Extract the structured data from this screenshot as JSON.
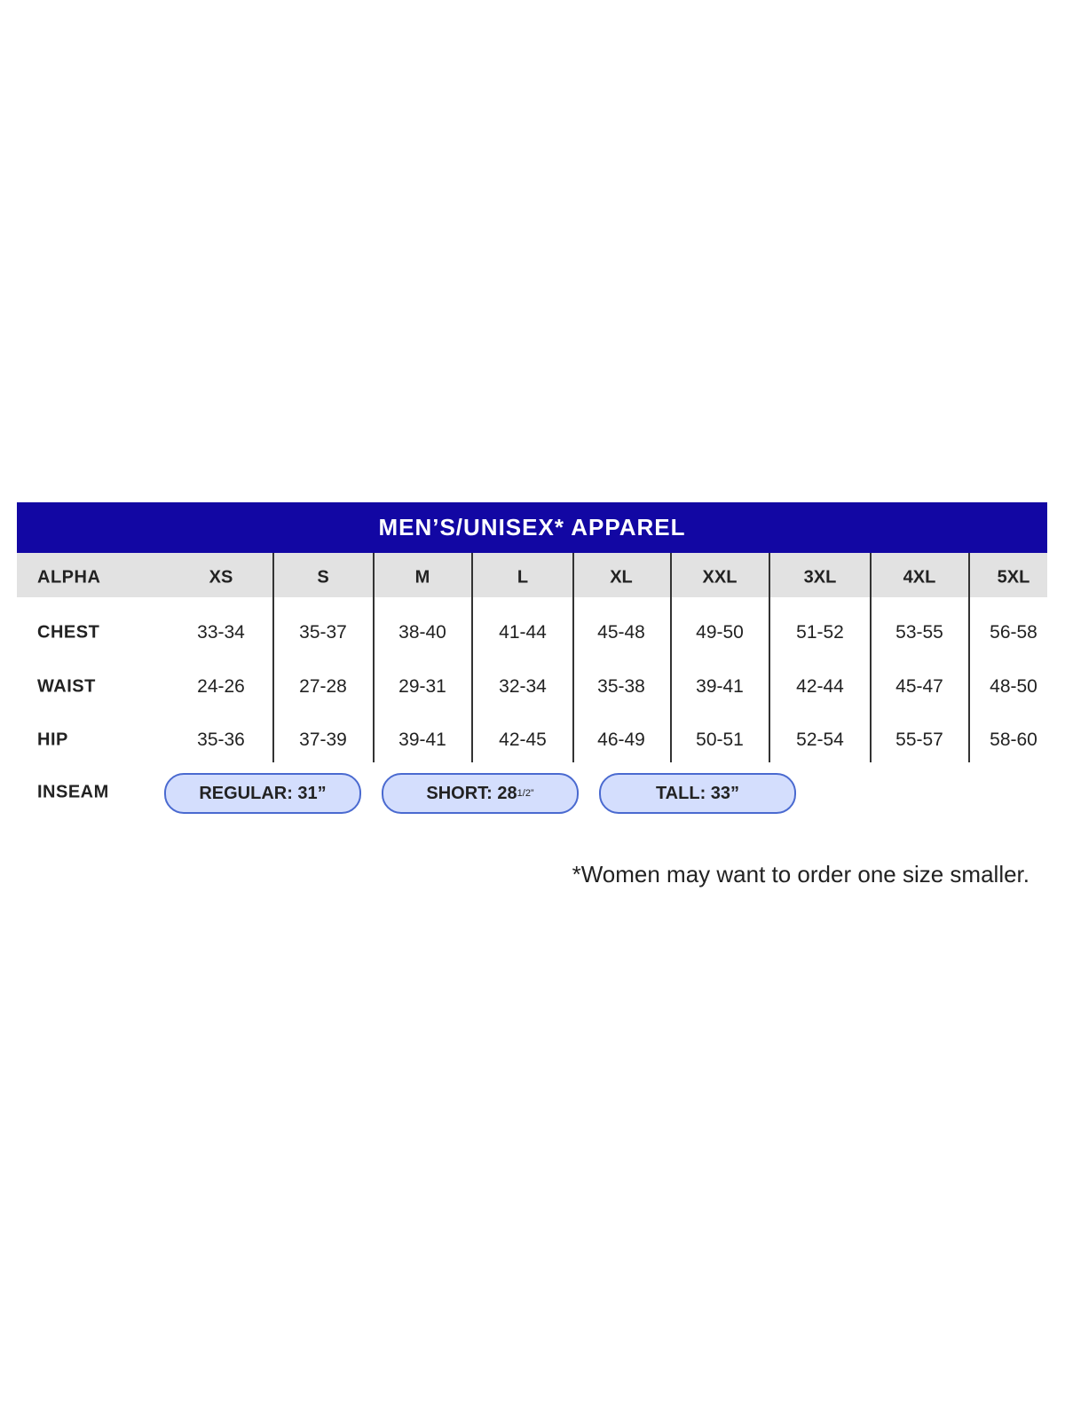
{
  "title": "MEN’S/UNISEX* APPAREL",
  "colors": {
    "header_bg": "#1207a3",
    "row_header_bg": "#e2e2e2",
    "pill_bg": "#d4defd",
    "pill_border": "#4a6ad0"
  },
  "header": {
    "label": "ALPHA",
    "sizes": [
      "XS",
      "S",
      "M",
      "L",
      "XL",
      "XXL",
      "3XL",
      "4XL",
      "5XL"
    ]
  },
  "rows": [
    {
      "label": "CHEST",
      "values": [
        "33-34",
        "35-37",
        "38-40",
        "41-44",
        "45-48",
        "49-50",
        "51-52",
        "53-55",
        "56-58"
      ]
    },
    {
      "label": "WAIST",
      "values": [
        "24-26",
        "27-28",
        "29-31",
        "32-34",
        "35-38",
        "39-41",
        "42-44",
        "45-47",
        "48-50"
      ]
    },
    {
      "label": "HIP",
      "values": [
        "35-36",
        "37-39",
        "39-41",
        "42-45",
        "46-49",
        "50-51",
        "52-54",
        "55-57",
        "58-60"
      ]
    }
  ],
  "inseam": {
    "label": "INSEAM",
    "options": [
      {
        "text": "REGULAR: 31”"
      },
      {
        "text": "SHORT: 28",
        "sup": "1/2”"
      },
      {
        "text": "TALL: 33”"
      }
    ]
  },
  "footnote": "*Women may want to order one size smaller."
}
